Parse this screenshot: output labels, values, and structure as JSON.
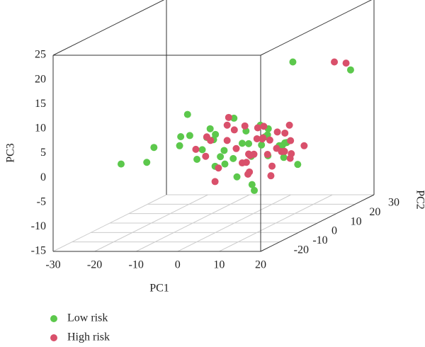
{
  "chart_data": {
    "type": "scatter3d",
    "x_label": "PC1",
    "y_label": "PC2",
    "z_label": "PC3",
    "xlim": [
      -30,
      20
    ],
    "xticks": [
      -30,
      -20,
      -10,
      0,
      10,
      20
    ],
    "ylim": [
      -30,
      30
    ],
    "yticks": [
      -20,
      -10,
      0,
      10,
      20,
      30
    ],
    "zlim": [
      -15,
      25
    ],
    "zticks": [
      -15,
      -10,
      -5,
      0,
      5,
      10,
      15,
      20,
      25
    ],
    "grid": true,
    "legend": "bottom-left",
    "series": [
      {
        "name": "Low risk",
        "color": "#5cc84c",
        "x": [
          -25,
          -22,
          -18,
          -15,
          -12,
          -10,
          -8,
          -6,
          -5,
          -4,
          -3,
          -2,
          -1,
          0,
          1,
          2,
          3,
          4,
          5,
          6,
          7,
          8,
          9,
          10,
          11,
          12,
          13,
          14,
          -7,
          -3,
          2,
          6,
          9,
          -9,
          0,
          4,
          8,
          -14,
          5,
          18
        ],
        "y": [
          -5,
          2,
          -3,
          4,
          -2,
          5,
          -6,
          3,
          0,
          -4,
          6,
          -1,
          2,
          -5,
          4,
          -3,
          1,
          5,
          -2,
          3,
          -6,
          0,
          4,
          -4,
          2,
          -1,
          5,
          -3,
          8,
          -8,
          10,
          -9,
          7,
          0,
          -10,
          9,
          -7,
          6,
          20,
          22
        ],
        "z": [
          -2,
          -3,
          1,
          0,
          3,
          -1,
          4,
          -4,
          2,
          5,
          -3,
          0,
          6,
          -2,
          3,
          -5,
          1,
          4,
          -1,
          2,
          -6,
          3,
          0,
          5,
          -2,
          1,
          -4,
          2,
          -3,
          4,
          -1,
          3,
          0,
          -2,
          5,
          -3,
          -7,
          6,
          14,
          12
        ]
      },
      {
        "name": "High risk",
        "color": "#d9506b",
        "x": [
          -8,
          -6,
          -4,
          -2,
          0,
          1,
          2,
          3,
          4,
          5,
          6,
          7,
          8,
          9,
          10,
          11,
          12,
          13,
          14,
          15,
          -5,
          -1,
          3,
          6,
          9,
          12,
          0,
          4,
          8,
          11,
          -3,
          2,
          7,
          10,
          13,
          5,
          -7,
          1,
          16,
          15
        ],
        "y": [
          3,
          -2,
          5,
          -4,
          1,
          -6,
          4,
          -1,
          6,
          -3,
          2,
          -5,
          0,
          3,
          -2,
          5,
          -4,
          1,
          -1,
          4,
          8,
          -8,
          9,
          -9,
          7,
          -7,
          0,
          10,
          -10,
          6,
          -6,
          2,
          -3,
          3,
          -2,
          1,
          -5,
          5,
          24,
          20
        ],
        "z": [
          2,
          -1,
          4,
          -3,
          0,
          3,
          -2,
          5,
          1,
          -4,
          2,
          0,
          -1,
          3,
          -3,
          4,
          1,
          -2,
          2,
          0,
          5,
          -5,
          3,
          -1,
          2,
          -4,
          4,
          0,
          1,
          -2,
          3,
          -3,
          5,
          -1,
          0,
          2,
          1,
          -6,
          13,
          14
        ]
      }
    ]
  }
}
